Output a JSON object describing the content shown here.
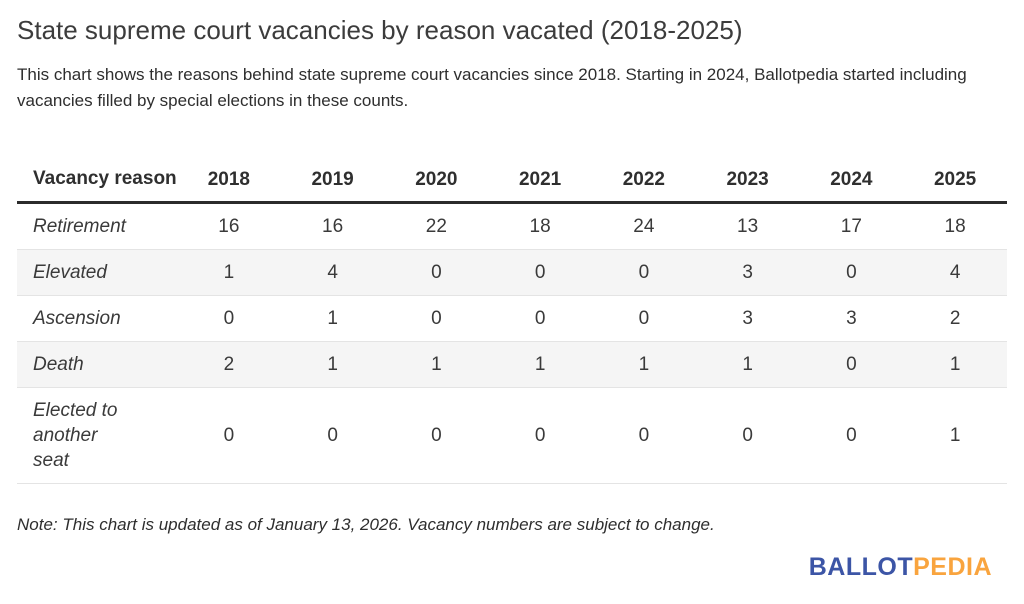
{
  "header": {
    "title": "State supreme court vacancies by reason vacated (2018-2025)",
    "subtitle": "This chart shows the reasons behind state supreme court vacancies since 2018. Starting in 2024, Ballotpedia started including vacancies filled by special elections in these counts."
  },
  "footer": {
    "note": "Note: This chart is updated as of January 13, 2026. Vacancy numbers are subject to change.",
    "logo": {
      "part1": "BALLOT",
      "part2": "PEDIA",
      "blue": "#3c55a6",
      "orange": "#f9a43e"
    }
  },
  "colors": {
    "stripe": "#f5f5f5",
    "header_rule": "#2b2b2b",
    "row_border": "#e4e4e4",
    "text": "#3a3a3a"
  },
  "chart_data": {
    "type": "table",
    "title": "State supreme court vacancies by reason vacated (2018-2025)",
    "row_header_label": "Vacancy reason",
    "categories": [
      "2018",
      "2019",
      "2020",
      "2021",
      "2022",
      "2023",
      "2024",
      "2025"
    ],
    "series": [
      {
        "name": "Retirement",
        "values": [
          16,
          16,
          22,
          18,
          24,
          13,
          17,
          18
        ]
      },
      {
        "name": "Elevated",
        "values": [
          1,
          4,
          0,
          0,
          0,
          3,
          0,
          4
        ]
      },
      {
        "name": "Ascension",
        "values": [
          0,
          1,
          0,
          0,
          0,
          3,
          3,
          2
        ]
      },
      {
        "name": "Death",
        "values": [
          2,
          1,
          1,
          1,
          1,
          1,
          0,
          1
        ]
      },
      {
        "name": "Elected to another seat",
        "values": [
          0,
          0,
          0,
          0,
          0,
          0,
          0,
          1
        ]
      }
    ],
    "layout": {
      "striped_rows": true,
      "legend": "none",
      "grid": "off"
    }
  }
}
